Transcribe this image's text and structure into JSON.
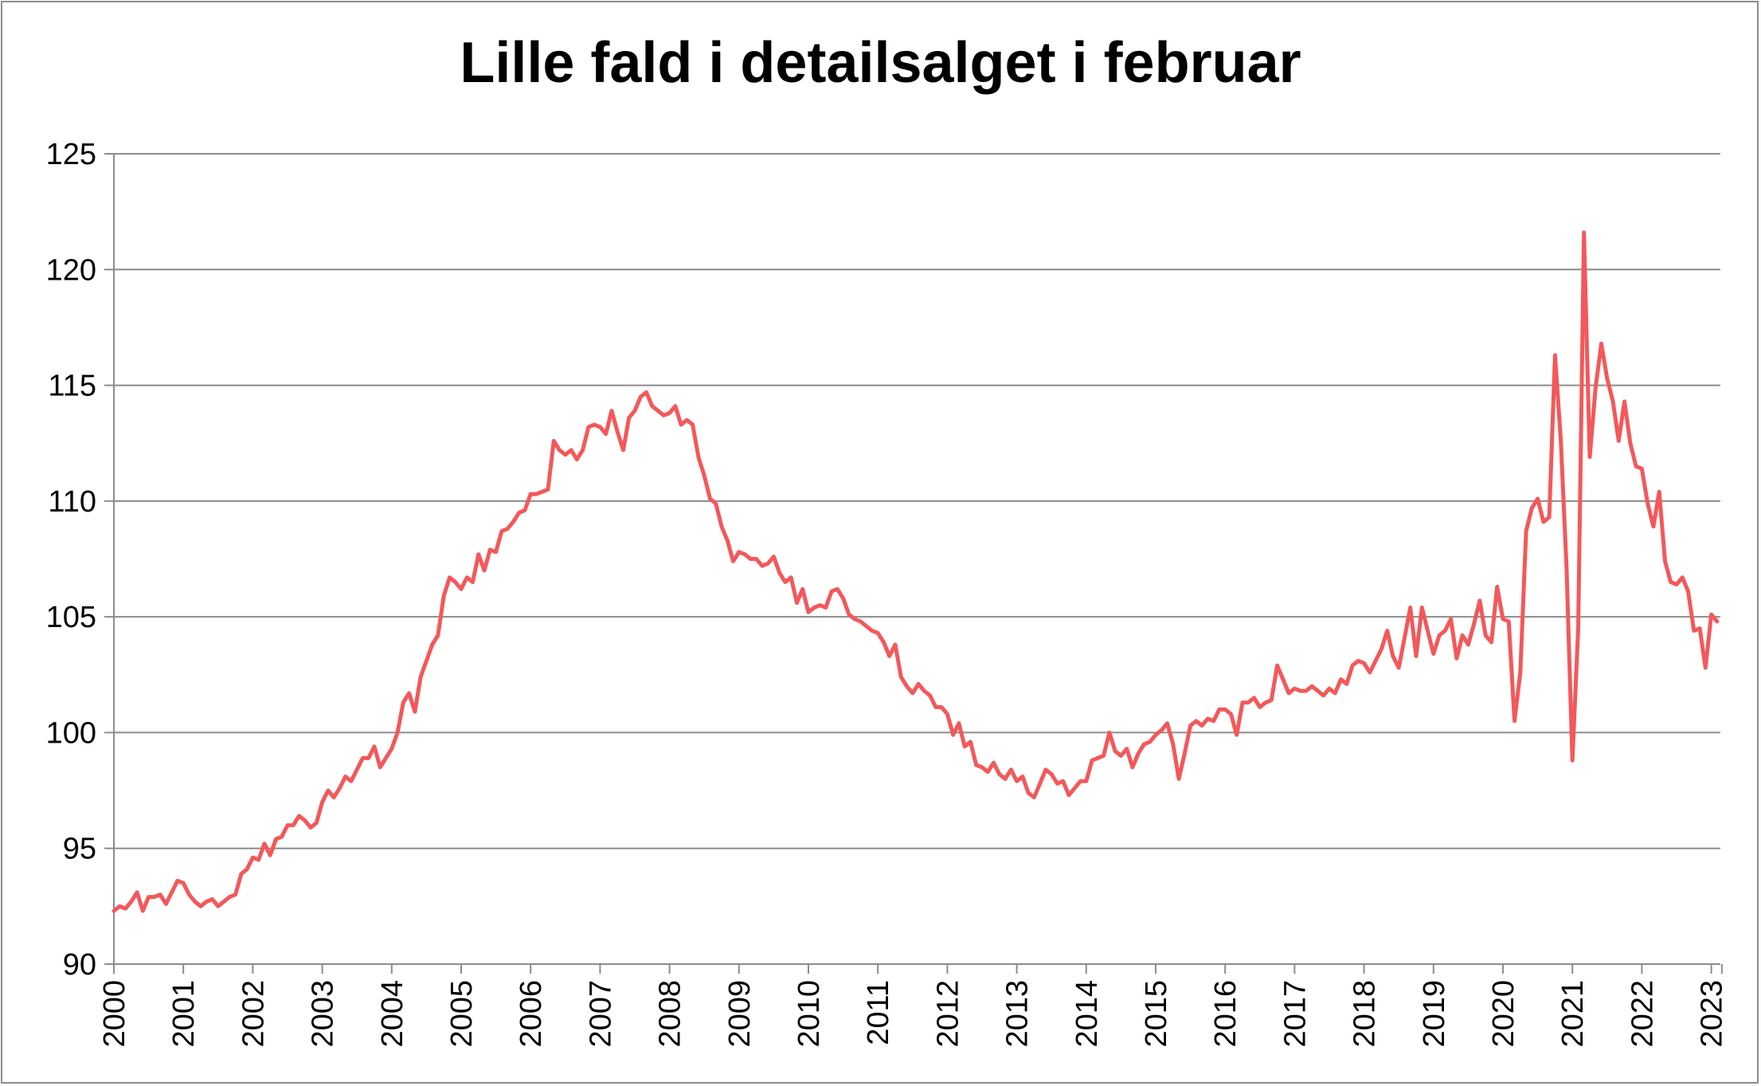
{
  "chart_data": {
    "type": "line",
    "title": "Lille fald i detailsalget i februar",
    "xlabel": "",
    "ylabel": "",
    "ylim": [
      90,
      125
    ],
    "yticks": [
      "90",
      "95",
      "100",
      "105",
      "110",
      "115",
      "120",
      "125"
    ],
    "xticks": [
      "2000",
      "2001",
      "2002",
      "2003",
      "2004",
      "2005",
      "2006",
      "2007",
      "2008",
      "2009",
      "2010",
      "2011",
      "2012",
      "2013",
      "2014",
      "2015",
      "2016",
      "2017",
      "2018",
      "2019",
      "2020",
      "2021",
      "2022",
      "2023"
    ],
    "grid": true,
    "legend": "none",
    "line_color": "#f4585a",
    "series": [
      {
        "start": "2000-01",
        "frequency": "monthly",
        "values": [
          92.3,
          92.5,
          92.4,
          92.7,
          93.1,
          92.3,
          92.9,
          92.9,
          93.0,
          92.6,
          93.1,
          93.6,
          93.5,
          93.0,
          92.7,
          92.5,
          92.7,
          92.8,
          92.5,
          92.7,
          92.9,
          93.0,
          93.9,
          94.1,
          94.6,
          94.5,
          95.2,
          94.7,
          95.4,
          95.5,
          96.0,
          96.0,
          96.4,
          96.2,
          95.9,
          96.1,
          97.0,
          97.5,
          97.2,
          97.6,
          98.1,
          97.9,
          98.4,
          98.9,
          98.9,
          99.4,
          98.5,
          98.9,
          99.3,
          100.0,
          101.3,
          101.7,
          100.9,
          102.4,
          103.1,
          103.8,
          104.2,
          105.9,
          106.7,
          106.5,
          106.2,
          106.7,
          106.5,
          107.7,
          107.0,
          107.9,
          107.8,
          108.7,
          108.8,
          109.1,
          109.5,
          109.6,
          110.3,
          110.3,
          110.4,
          110.5,
          112.6,
          112.2,
          112.0,
          112.2,
          111.8,
          112.2,
          113.2,
          113.3,
          113.2,
          112.9,
          113.9,
          113.0,
          112.2,
          113.6,
          113.9,
          114.5,
          114.7,
          114.1,
          113.9,
          113.7,
          113.8,
          114.1,
          113.3,
          113.5,
          113.3,
          111.9,
          111.1,
          110.1,
          109.9,
          108.9,
          108.3,
          107.4,
          107.8,
          107.7,
          107.5,
          107.5,
          107.2,
          107.3,
          107.6,
          106.9,
          106.5,
          106.7,
          105.6,
          106.2,
          105.2,
          105.4,
          105.5,
          105.4,
          106.1,
          106.2,
          105.8,
          105.1,
          104.9,
          104.8,
          104.6,
          104.4,
          104.3,
          103.9,
          103.3,
          103.8,
          102.4,
          102.0,
          101.7,
          102.1,
          101.8,
          101.6,
          101.1,
          101.1,
          100.8,
          99.9,
          100.4,
          99.4,
          99.6,
          98.6,
          98.5,
          98.3,
          98.7,
          98.2,
          98.0,
          98.4,
          97.9,
          98.1,
          97.4,
          97.2,
          97.8,
          98.4,
          98.2,
          97.8,
          97.9,
          97.3,
          97.6,
          97.9,
          97.9,
          98.8,
          98.9,
          99.0,
          100.0,
          99.2,
          99.0,
          99.3,
          98.5,
          99.1,
          99.5,
          99.6,
          99.9,
          100.1,
          100.4,
          99.5,
          98.0,
          99.1,
          100.3,
          100.5,
          100.3,
          100.6,
          100.5,
          101.0,
          101.0,
          100.8,
          99.9,
          101.3,
          101.3,
          101.5,
          101.1,
          101.3,
          101.4,
          102.9,
          102.3,
          101.7,
          101.9,
          101.8,
          101.8,
          102.0,
          101.8,
          101.6,
          101.9,
          101.7,
          102.3,
          102.1,
          102.9,
          103.1,
          103.0,
          102.6,
          103.1,
          103.6,
          104.4,
          103.3,
          102.8,
          104.1,
          105.4,
          103.3,
          105.4,
          104.4,
          103.4,
          104.2,
          104.4,
          104.9,
          103.2,
          104.2,
          103.8,
          104.7,
          105.7,
          104.2,
          103.9,
          106.3,
          104.9,
          104.8,
          100.5,
          102.6,
          108.7,
          109.7,
          110.1,
          109.1,
          109.3,
          116.3,
          112.6,
          107.1,
          98.8,
          104.5,
          121.6,
          111.9,
          114.9,
          116.8,
          115.3,
          114.3,
          112.6,
          114.3,
          112.5,
          111.5,
          111.4,
          109.9,
          108.9,
          110.4,
          107.4,
          106.5,
          106.4,
          106.7,
          106.1,
          104.4,
          104.5,
          102.8,
          105.1,
          104.8
        ]
      }
    ]
  }
}
